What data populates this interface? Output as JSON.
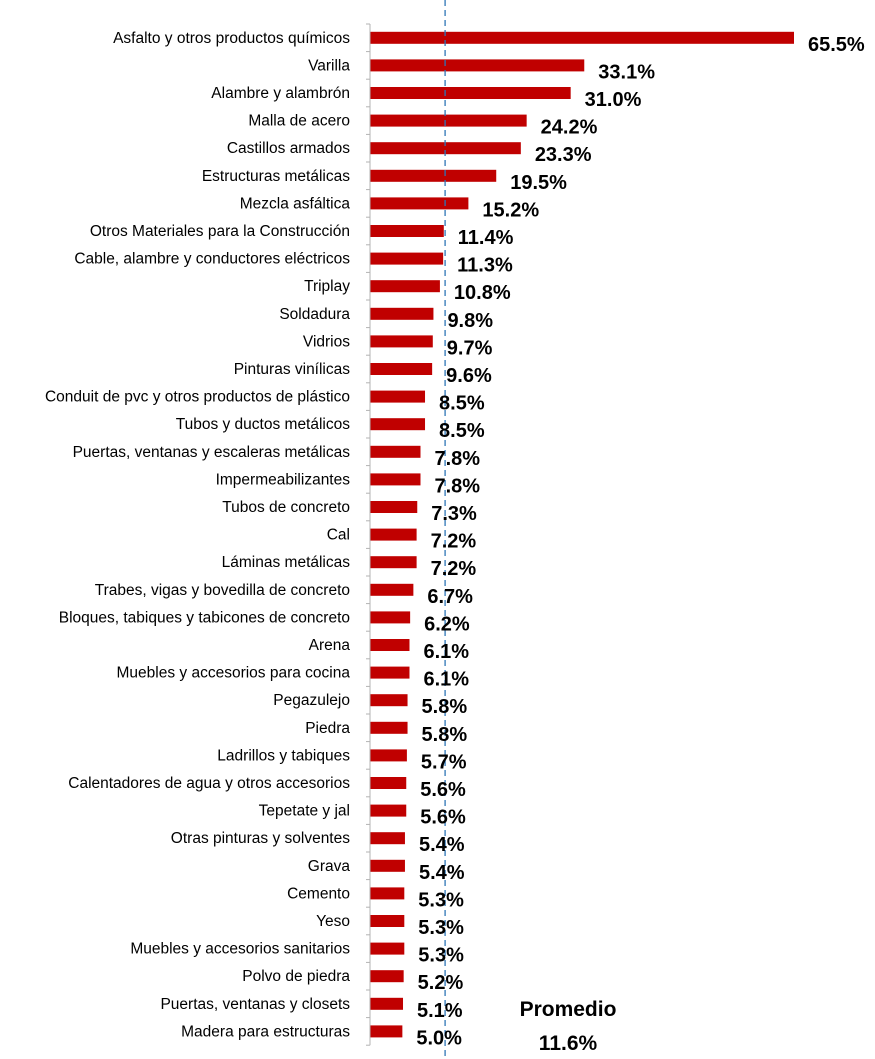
{
  "chart_data": {
    "type": "bar",
    "orientation": "horizontal",
    "categories": [
      "Asfalto y otros productos químicos",
      "Varilla",
      "Alambre y alambrón",
      "Malla de acero",
      "Castillos armados",
      "Estructuras metálicas",
      "Mezcla asfáltica",
      "Otros Materiales para la Construcción",
      "Cable, alambre y conductores eléctricos",
      "Triplay",
      "Soldadura",
      "Vidrios",
      "Pinturas vinílicas",
      "Conduit de pvc y otros productos de plástico",
      "Tubos y ductos metálicos",
      "Puertas, ventanas y escaleras metálicas",
      "Impermeabilizantes",
      "Tubos de concreto",
      "Cal",
      "Láminas metálicas",
      "Trabes, vigas y bovedilla de concreto",
      "Bloques, tabiques y tabicones de concreto",
      "Arena",
      "Muebles y accesorios para cocina",
      "Pegazulejo",
      "Piedra",
      "Ladrillos y tabiques",
      "Calentadores de agua y otros accesorios",
      "Tepetate y jal",
      "Otras pinturas y solventes",
      "Grava",
      "Cemento",
      "Yeso",
      "Muebles y accesorios sanitarios",
      "Polvo de piedra",
      "Puertas, ventanas y closets",
      "Madera para estructuras"
    ],
    "values": [
      65.5,
      33.1,
      31.0,
      24.2,
      23.3,
      19.5,
      15.2,
      11.4,
      11.3,
      10.8,
      9.8,
      9.7,
      9.6,
      8.5,
      8.5,
      7.8,
      7.8,
      7.3,
      7.2,
      7.2,
      6.7,
      6.2,
      6.1,
      6.1,
      5.8,
      5.8,
      5.7,
      5.6,
      5.6,
      5.4,
      5.4,
      5.3,
      5.3,
      5.3,
      5.2,
      5.1,
      5.0
    ],
    "value_labels": [
      "65.5%",
      "33.1%",
      "31.0%",
      "24.2%",
      "23.3%",
      "19.5%",
      "15.2%",
      "11.4%",
      "11.3%",
      "10.8%",
      "9.8%",
      "9.7%",
      "9.6%",
      "8.5%",
      "8.5%",
      "7.8%",
      "7.8%",
      "7.3%",
      "7.2%",
      "7.2%",
      "6.7%",
      "6.2%",
      "6.1%",
      "6.1%",
      "5.8%",
      "5.8%",
      "5.7%",
      "5.6%",
      "5.6%",
      "5.4%",
      "5.4%",
      "5.3%",
      "5.3%",
      "5.3%",
      "5.2%",
      "5.1%",
      "5.0%"
    ],
    "xlim": [
      0,
      65.5
    ],
    "grid": false,
    "bar_color": "#C00000",
    "reference_line": {
      "value": 11.6,
      "label": "Promedio",
      "value_label": "11.6%",
      "color": "#2E75B6",
      "style": "dashed"
    }
  }
}
